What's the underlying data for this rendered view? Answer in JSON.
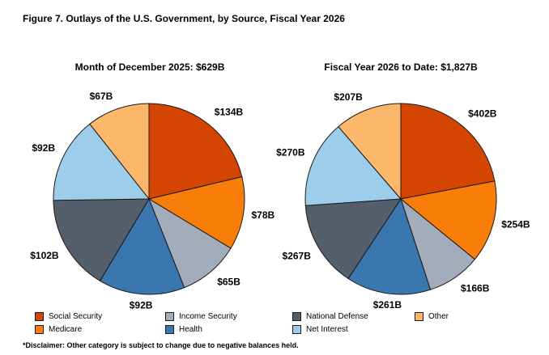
{
  "page": {
    "title": "Figure 7. Outlays of the U.S. Government, by Source, Fiscal Year 2026",
    "disclaimer": "*Disclaimer: Other category is subject to change due to negative balances held."
  },
  "colors": {
    "social_security": "#D44502",
    "medicare": "#F87D09",
    "income_security": "#A2ACBA",
    "health": "#3A77AF",
    "national_defense": "#545F6B",
    "net_interest": "#9CCDEB",
    "other": "#FCB76B",
    "slice_outline": "#1a1a1a",
    "text": "#000000"
  },
  "legend": {
    "items": [
      {
        "label": "Social Security",
        "color_key": "social_security"
      },
      {
        "label": "Medicare",
        "color_key": "medicare"
      },
      {
        "label": "Income Security",
        "color_key": "income_security"
      },
      {
        "label": "Health",
        "color_key": "health"
      },
      {
        "label": "National Defense",
        "color_key": "national_defense"
      },
      {
        "label": "Net Interest",
        "color_key": "net_interest"
      },
      {
        "label": "Other",
        "color_key": "other"
      }
    ]
  },
  "chart_data": [
    {
      "type": "pie",
      "title": "Month of December 2025: $629B",
      "total_label": "$629B",
      "start_angle_deg": 0,
      "direction": "clockwise",
      "legend_position": "bottom",
      "categories": [
        "Social Security",
        "Medicare",
        "Income Security",
        "Health",
        "National Defense",
        "Net Interest",
        "Other"
      ],
      "values": [
        134,
        78,
        65,
        92,
        102,
        92,
        67
      ],
      "labels": [
        "$134B",
        "$78B",
        "$65B",
        "$92B",
        "$102B",
        "$92B",
        "$67B"
      ]
    },
    {
      "type": "pie",
      "title": "Fiscal Year 2026 to Date: $1,827B",
      "total_label": "$1,827B",
      "start_angle_deg": 0,
      "direction": "clockwise",
      "legend_position": "bottom",
      "categories": [
        "Social Security",
        "Medicare",
        "Income Security",
        "Health",
        "National Defense",
        "Net Interest",
        "Other"
      ],
      "values": [
        402,
        254,
        166,
        261,
        267,
        270,
        207
      ],
      "labels": [
        "$402B",
        "$254B",
        "$166B",
        "$261B",
        "$267B",
        "$270B",
        "$207B"
      ]
    }
  ]
}
